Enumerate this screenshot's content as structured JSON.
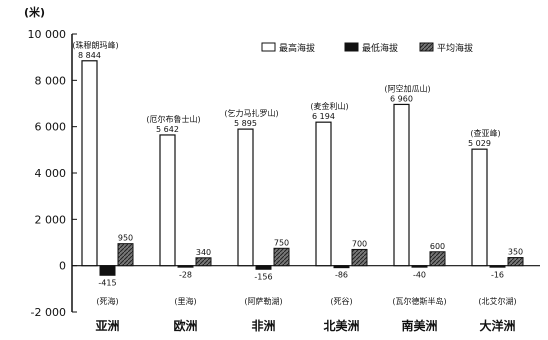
{
  "chart_data": {
    "type": "bar",
    "ylabel": "(米)",
    "ylim": [
      -2000,
      10000
    ],
    "yticks": [
      -2000,
      0,
      2000,
      4000,
      6000,
      8000,
      10000
    ],
    "ytick_labels": [
      "-2 000",
      "0",
      "2 000",
      "4 000",
      "6 000",
      "8 000",
      "10 000"
    ],
    "categories": [
      "亚洲",
      "欧洲",
      "非洲",
      "北美洲",
      "南美洲",
      "大洋洲"
    ],
    "series": [
      {
        "name": "最高海拔",
        "color": "#ffffff",
        "values": [
          8844,
          5642,
          5895,
          6194,
          6960,
          5029
        ],
        "labels": [
          "8 844",
          "5 642",
          "5 895",
          "6 194",
          "6 960",
          "5 029"
        ],
        "places": [
          "(珠穆朗玛峰)",
          "(厄尔布鲁士山)",
          "(乞力马扎罗山)",
          "(麦金利山)",
          "(阿空加瓜山)",
          "(查亚峰)"
        ]
      },
      {
        "name": "最低海拔",
        "color": "#111111",
        "values": [
          -415,
          -28,
          -156,
          -86,
          -40,
          -16
        ],
        "labels": [
          "-415",
          "-28",
          "-156",
          "-86",
          "-40",
          "-16"
        ],
        "places": [
          "(死海)",
          "(里海)",
          "(阿萨勒湖)",
          "(死谷)",
          "(瓦尔德斯半岛)",
          "(北艾尔湖)"
        ]
      },
      {
        "name": "平均海拔",
        "color": "#555555",
        "values": [
          950,
          340,
          750,
          700,
          600,
          350
        ],
        "labels": [
          "950",
          "340",
          "750",
          "700",
          "600",
          "350"
        ]
      }
    ],
    "legend_position": "top-right",
    "grid": false
  }
}
